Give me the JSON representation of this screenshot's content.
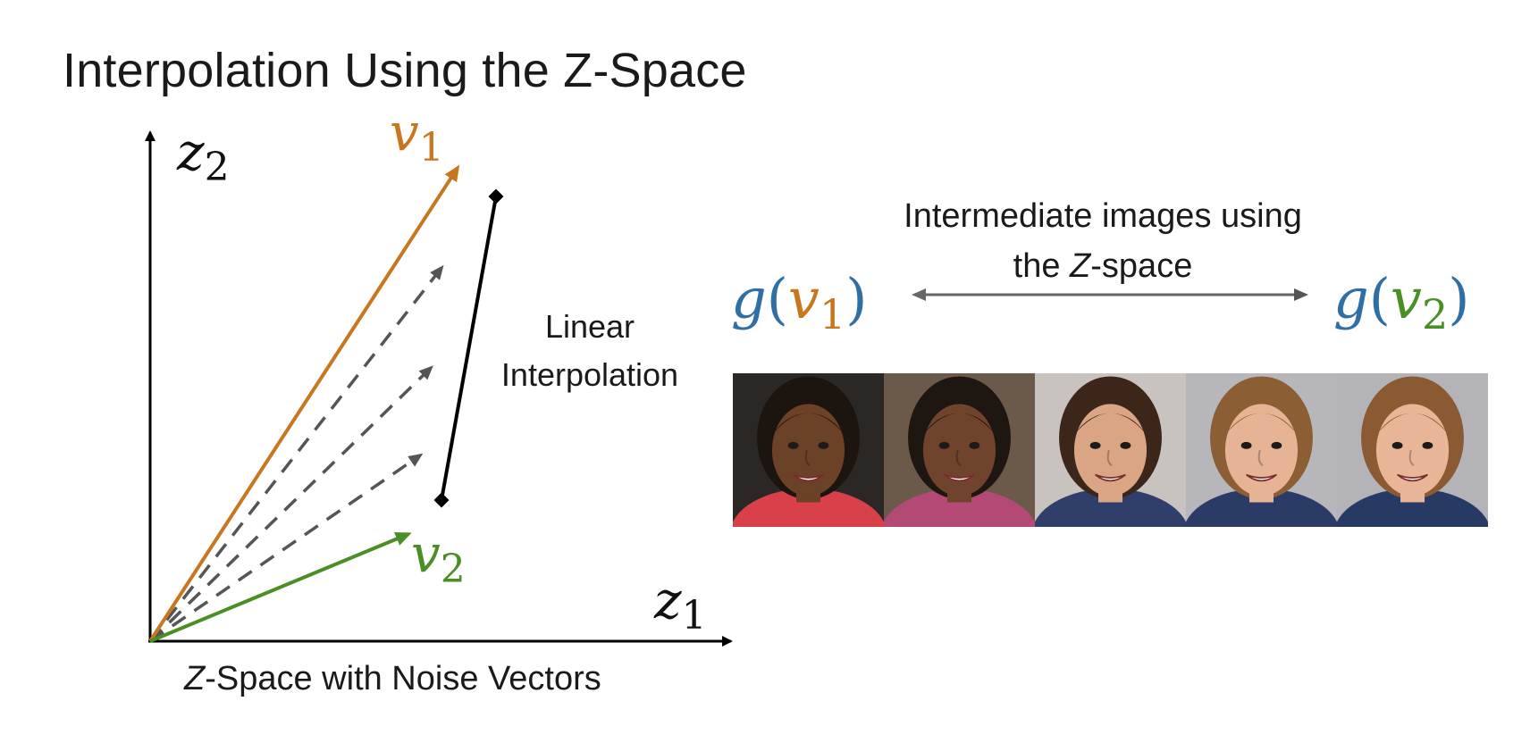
{
  "slide": {
    "title": "Interpolation Using the Z-Space"
  },
  "diagram": {
    "axis_x_label": "z",
    "axis_x_sub": "1",
    "axis_y_label": "z",
    "axis_y_sub": "2",
    "vector1_label": "v",
    "vector1_sub": "1",
    "vector2_label": "v",
    "vector2_sub": "2",
    "interp_label_line1": "Linear",
    "interp_label_line2": "Interpolation",
    "caption_prefix": "Z",
    "caption_rest": "-Space with Noise Vectors",
    "colors": {
      "vector1": "#c7771f",
      "vector2": "#4a8f25",
      "dashed": "#555555",
      "function": "#2f6fa6"
    }
  },
  "right_panel": {
    "label_line1": "Intermediate images using",
    "label_line2_prefix": "the ",
    "label_line2_z": "Z",
    "label_line2_rest": "-space",
    "g_left_fn": "g",
    "g_left_arg": "v",
    "g_left_sub": "1",
    "g_right_fn": "g",
    "g_right_arg": "v",
    "g_right_sub": "2",
    "paren_open": "(",
    "paren_close": ")"
  },
  "faces": [
    {
      "name": "face-1",
      "skin": "#6b4128",
      "hair": "#1c140f",
      "shirt": "#d8404a",
      "bg": "#2b2725"
    },
    {
      "name": "face-2",
      "skin": "#70432c",
      "hair": "#1e1610",
      "shirt": "#b34a76",
      "bg": "#6b5a4a"
    },
    {
      "name": "face-3",
      "skin": "#d9a585",
      "hair": "#3b2619",
      "shirt": "#2f3f6a",
      "bg": "#c9c3c0"
    },
    {
      "name": "face-4",
      "skin": "#e6b494",
      "hair": "#8c5e33",
      "shirt": "#2a3c66",
      "bg": "#b7b7bb"
    },
    {
      "name": "face-5",
      "skin": "#e8b597",
      "hair": "#8a5a33",
      "shirt": "#263a64",
      "bg": "#b4b3b7"
    }
  ]
}
